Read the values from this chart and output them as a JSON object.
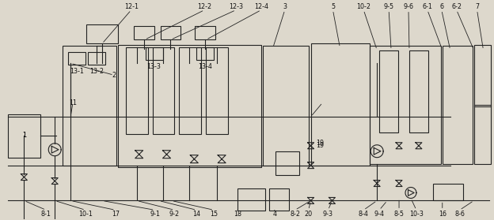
{
  "bg_color": "#ddd8cc",
  "line_color": "#222222",
  "fig_width": 6.24,
  "fig_height": 2.79,
  "dpi": 100,
  "font_size": 5.8,
  "label_color": "#111111"
}
